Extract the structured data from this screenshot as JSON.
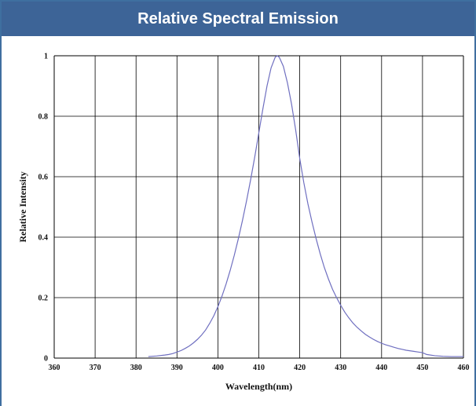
{
  "header": {
    "title": "Relative Spectral Emission"
  },
  "colors": {
    "header_bg": "#3d6497",
    "border": "#3f6fa0",
    "curve": "#6f6fc0",
    "grid": "#000000"
  },
  "chart_data": {
    "type": "line",
    "title": "Relative Spectral Emission",
    "xlabel": "Wavelength(nm)",
    "ylabel": "Relative Intensity",
    "xlim": [
      360,
      460
    ],
    "ylim": [
      0,
      1
    ],
    "grid": true,
    "x_ticks": [
      360,
      370,
      380,
      390,
      400,
      410,
      420,
      430,
      440,
      450,
      460
    ],
    "x_tick_labels": [
      "360",
      "370",
      "380",
      "390",
      "400",
      "410",
      "420",
      "430",
      "440",
      "450",
      "460"
    ],
    "y_ticks": [
      0,
      0.2,
      0.4,
      0.6,
      0.8,
      1
    ],
    "y_tick_labels": [
      "0",
      "0.2",
      "0.4",
      "0.6",
      "0.8",
      "1"
    ],
    "series": [
      {
        "x": [
          383,
          385,
          387,
          388,
          389,
          390,
          391,
          392,
          393,
          394,
          395,
          396,
          397,
          398,
          399,
          400,
          401,
          402,
          403,
          404,
          405,
          406,
          407,
          408,
          409,
          410,
          411,
          412,
          413,
          414,
          414.5,
          415,
          416,
          417,
          418,
          419,
          420,
          421,
          422,
          423,
          424,
          425,
          426,
          427,
          428,
          429,
          430,
          431,
          432,
          433,
          434,
          435,
          436,
          437,
          438,
          439,
          440,
          441,
          442,
          443,
          444,
          445,
          446,
          447,
          448,
          449,
          450,
          451,
          453,
          455,
          457,
          460
        ],
        "y": [
          0.005,
          0.007,
          0.01,
          0.012,
          0.015,
          0.02,
          0.025,
          0.032,
          0.04,
          0.05,
          0.062,
          0.076,
          0.093,
          0.115,
          0.14,
          0.17,
          0.205,
          0.245,
          0.29,
          0.34,
          0.395,
          0.455,
          0.52,
          0.59,
          0.665,
          0.745,
          0.825,
          0.9,
          0.96,
          0.995,
          1.0,
          0.995,
          0.965,
          0.91,
          0.84,
          0.755,
          0.66,
          0.58,
          0.51,
          0.45,
          0.395,
          0.345,
          0.3,
          0.262,
          0.228,
          0.2,
          0.175,
          0.152,
          0.133,
          0.116,
          0.102,
          0.09,
          0.079,
          0.07,
          0.062,
          0.055,
          0.049,
          0.044,
          0.04,
          0.036,
          0.032,
          0.029,
          0.026,
          0.024,
          0.022,
          0.02,
          0.018,
          0.012,
          0.008,
          0.006,
          0.005,
          0.005
        ]
      }
    ]
  }
}
